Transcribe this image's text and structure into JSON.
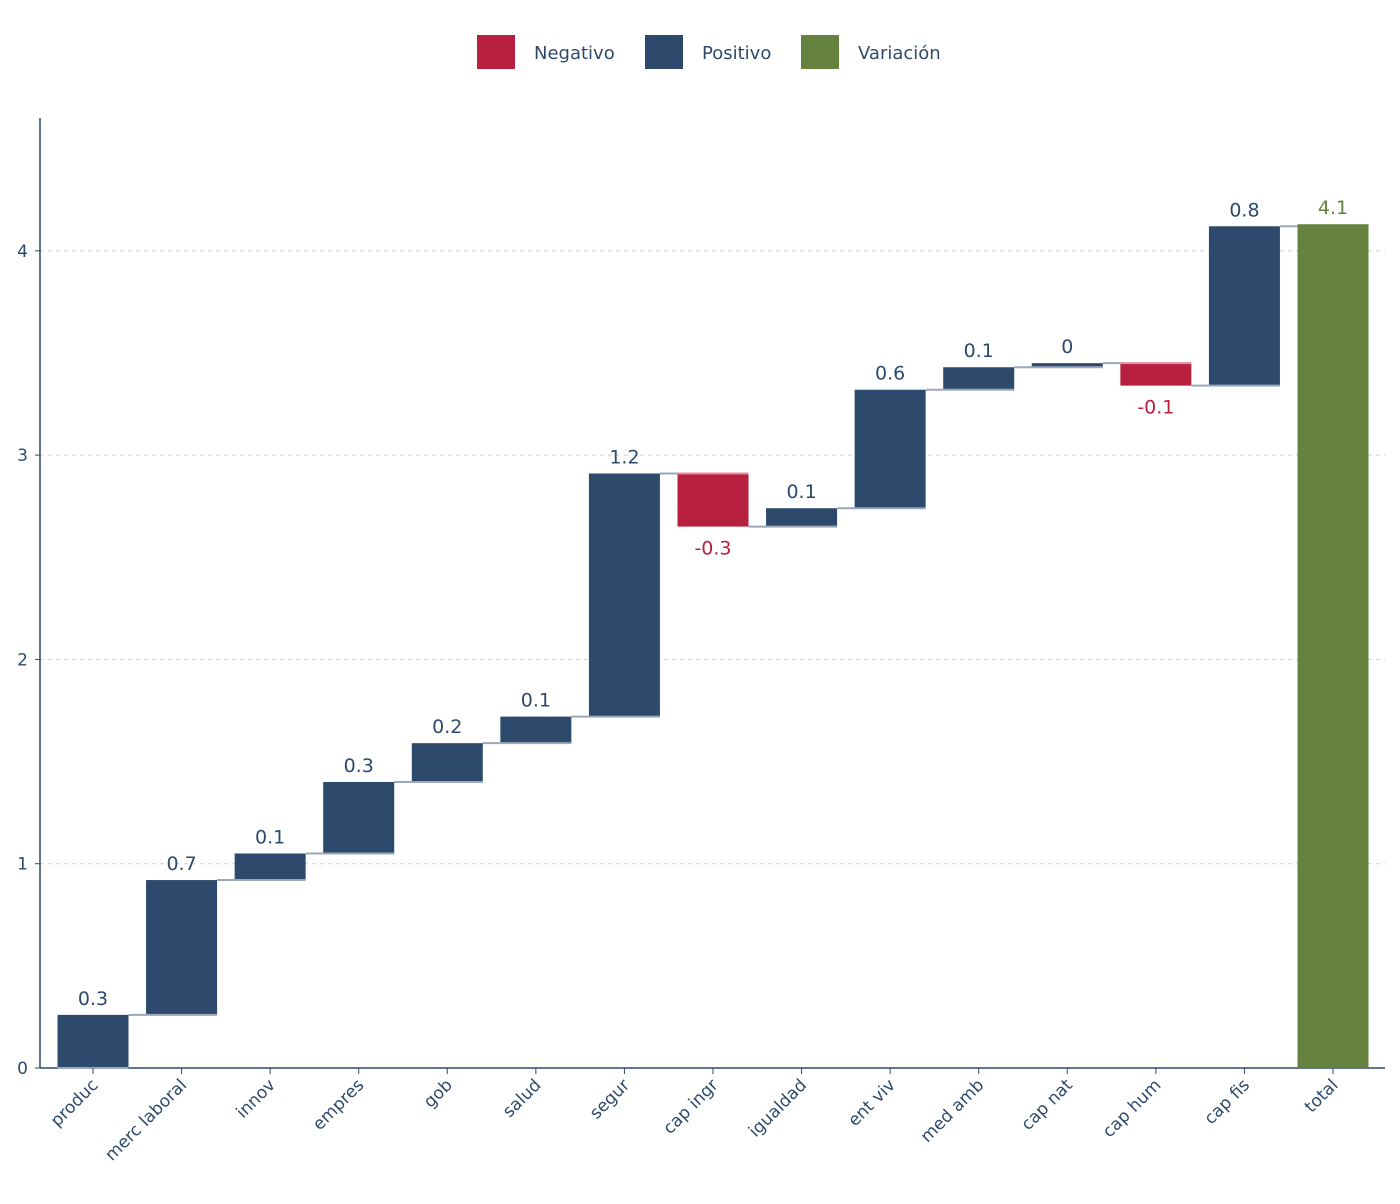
{
  "chart_data": {
    "type": "waterfall",
    "title": "",
    "xlabel": "",
    "ylabel": "",
    "ylim": [
      0,
      4.65
    ],
    "yticks": [
      0,
      1,
      2,
      3,
      4
    ],
    "grid": "horizontal dashed",
    "legend_position": "top",
    "legend": [
      {
        "name": "Negativo",
        "color": "#b82040"
      },
      {
        "name": "Positivo",
        "color": "#2d4a6c"
      },
      {
        "name": "Variación",
        "color": "#66823f"
      }
    ],
    "categories": [
      "produc",
      "merc laboral",
      "innov",
      "empres",
      "gob",
      "salud",
      "segur",
      "cap ingr",
      "igualdad",
      "ent viv",
      "med amb",
      "cap nat",
      "cap hum",
      "cap fis",
      "total"
    ],
    "values": [
      0.26,
      0.66,
      0.13,
      0.35,
      0.19,
      0.13,
      1.19,
      -0.26,
      0.09,
      0.58,
      0.11,
      0.02,
      -0.11,
      0.78,
      4.13
    ],
    "labels": [
      "0.3",
      "0.7",
      "0.1",
      "0.3",
      "0.2",
      "0.1",
      "1.2",
      "-0.3",
      "0.1",
      "0.6",
      "0.1",
      "0",
      "-0.1",
      "0.8",
      "4.1"
    ],
    "is_total": [
      false,
      false,
      false,
      false,
      false,
      false,
      false,
      false,
      false,
      false,
      false,
      false,
      false,
      false,
      true
    ]
  }
}
